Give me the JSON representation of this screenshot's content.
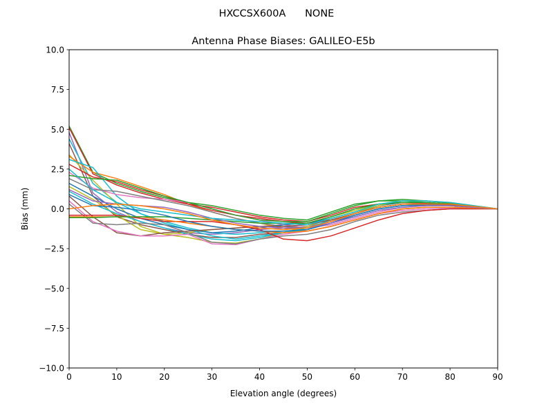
{
  "chart_data": {
    "type": "line",
    "suptitle": "HXCCSX600A      NONE",
    "title": "Antenna Phase Biases: GALILEO-E5b",
    "xlabel": "Elevation angle (degrees)",
    "ylabel": "Bias (mm)",
    "xlim": [
      0,
      90
    ],
    "ylim": [
      -10,
      10
    ],
    "xticks": [
      "0",
      "10",
      "20",
      "30",
      "40",
      "50",
      "60",
      "70",
      "80",
      "90"
    ],
    "yticks": [
      "10.0",
      "7.5",
      "5.0",
      "2.5",
      "0.0",
      "−2.5",
      "−5.0",
      "−7.5",
      "−10.0"
    ],
    "grid": false,
    "legend": "none",
    "colors": [
      "#1f77b4",
      "#ff7f0e",
      "#2ca02c",
      "#d62728",
      "#9467bd",
      "#8c564b",
      "#e377c2",
      "#7f7f7f",
      "#bcbd22",
      "#17becf"
    ],
    "x": [
      0,
      5,
      10,
      15,
      20,
      25,
      30,
      35,
      40,
      45,
      50,
      55,
      60,
      65,
      70,
      75,
      80,
      85,
      90
    ],
    "series": [
      {
        "color": "#2ca02c",
        "values": [
          5.2,
          2.3,
          1.6,
          1.1,
          0.7,
          0.4,
          0.2,
          -0.1,
          -0.4,
          -0.6,
          -0.7,
          -0.2,
          0.3,
          0.5,
          0.5,
          0.4,
          0.3,
          0.1,
          0
        ]
      },
      {
        "color": "#d62728",
        "values": [
          5.1,
          2.2,
          1.5,
          1.0,
          0.6,
          0.3,
          0.1,
          -0.2,
          -0.5,
          -0.7,
          -0.8,
          -0.4,
          0.1,
          0.3,
          0.4,
          0.35,
          0.25,
          0.1,
          0
        ]
      },
      {
        "color": "#9467bd",
        "values": [
          4.8,
          1.0,
          -0.2,
          -0.8,
          -1.2,
          -1.5,
          -1.6,
          -1.5,
          -1.3,
          -1.2,
          -1.1,
          -0.8,
          -0.4,
          0.0,
          0.2,
          0.25,
          0.2,
          0.1,
          0
        ]
      },
      {
        "color": "#17becf",
        "values": [
          4.4,
          1.6,
          0.4,
          -0.3,
          -0.8,
          -1.2,
          -1.5,
          -1.6,
          -1.5,
          -1.4,
          -1.3,
          -0.9,
          -0.5,
          -0.1,
          0.1,
          0.2,
          0.2,
          0.1,
          0
        ]
      },
      {
        "color": "#8c564b",
        "values": [
          4.1,
          0.8,
          -0.5,
          -1.0,
          -1.3,
          -1.6,
          -1.8,
          -1.8,
          -1.6,
          -1.5,
          -1.4,
          -1.1,
          -0.7,
          -0.3,
          0.0,
          0.1,
          0.1,
          0.05,
          0
        ]
      },
      {
        "color": "#bcbd22",
        "values": [
          3.4,
          1.8,
          0.3,
          -1.1,
          -1.6,
          -1.5,
          -1.3,
          -1.2,
          -1.1,
          -1.0,
          -0.9,
          -0.5,
          -0.1,
          0.3,
          0.4,
          0.4,
          0.3,
          0.15,
          0
        ]
      },
      {
        "color": "#ff7f0e",
        "values": [
          3.3,
          2.3,
          1.9,
          1.4,
          0.9,
          0.3,
          -0.2,
          -0.6,
          -0.9,
          -1.2,
          -1.4,
          -1.1,
          -0.7,
          -0.3,
          0.0,
          0.1,
          0.1,
          0.05,
          0
        ]
      },
      {
        "color": "#17becf",
        "values": [
          3.1,
          2.6,
          0.8,
          -0.3,
          -0.9,
          -1.3,
          -1.7,
          -1.9,
          -1.7,
          -1.5,
          -1.3,
          -0.9,
          -0.4,
          0.0,
          0.2,
          0.25,
          0.2,
          0.1,
          0
        ]
      },
      {
        "color": "#d62728",
        "values": [
          2.8,
          2.0,
          1.7,
          1.2,
          0.8,
          0.3,
          -0.1,
          -0.4,
          -0.6,
          -0.8,
          -0.9,
          -0.7,
          -0.3,
          0.1,
          0.3,
          0.3,
          0.25,
          0.1,
          0
        ]
      },
      {
        "color": "#e377c2",
        "values": [
          2.3,
          1.3,
          0.9,
          0.7,
          0.6,
          0.4,
          0.0,
          -0.4,
          -0.7,
          -1.0,
          -1.2,
          -1.0,
          -0.6,
          -0.2,
          0.1,
          0.2,
          0.2,
          0.1,
          0
        ]
      },
      {
        "color": "#2ca02c",
        "values": [
          2.1,
          1.9,
          1.8,
          1.3,
          0.8,
          0.4,
          0.0,
          -0.4,
          -0.7,
          -0.8,
          -0.8,
          -0.3,
          0.2,
          0.5,
          0.6,
          0.5,
          0.35,
          0.15,
          0
        ]
      },
      {
        "color": "#7f7f7f",
        "values": [
          1.9,
          1.2,
          1.1,
          0.8,
          0.5,
          0.2,
          -0.2,
          -0.6,
          -0.9,
          -1.1,
          -1.2,
          -0.8,
          -0.3,
          0.2,
          0.4,
          0.4,
          0.3,
          0.15,
          0
        ]
      },
      {
        "color": "#1f77b4",
        "values": [
          1.6,
          0.8,
          0.0,
          -0.6,
          -1.0,
          -1.3,
          -1.5,
          -1.4,
          -1.2,
          -1.0,
          -0.9,
          -0.6,
          -0.2,
          0.2,
          0.4,
          0.4,
          0.3,
          0.15,
          0
        ]
      },
      {
        "color": "#bcbd22",
        "values": [
          1.4,
          0.6,
          -0.4,
          -1.3,
          -1.6,
          -1.8,
          -2.1,
          -2.15,
          -1.9,
          -1.5,
          -1.1,
          -0.6,
          -0.2,
          0.2,
          0.5,
          0.5,
          0.4,
          0.2,
          0
        ]
      },
      {
        "color": "#17becf",
        "values": [
          1.1,
          0.3,
          -0.3,
          -0.8,
          -1.2,
          -1.6,
          -1.9,
          -2.0,
          -1.8,
          -1.5,
          -1.2,
          -0.7,
          -0.3,
          0.1,
          0.3,
          0.3,
          0.25,
          0.1,
          0
        ]
      },
      {
        "color": "#8c564b",
        "values": [
          0.8,
          -0.5,
          -1.5,
          -1.7,
          -1.5,
          -1.4,
          -1.3,
          -1.2,
          -1.1,
          -1.1,
          -1.0,
          -0.7,
          -0.3,
          0.1,
          0.3,
          0.3,
          0.25,
          0.1,
          0
        ]
      },
      {
        "color": "#e377c2",
        "values": [
          0.5,
          -0.8,
          -1.4,
          -1.7,
          -1.7,
          -1.6,
          -2.2,
          -2.25,
          -1.9,
          -1.6,
          -1.4,
          -1.1,
          -0.7,
          -0.3,
          -0.1,
          0.0,
          0.05,
          0.05,
          0
        ]
      },
      {
        "color": "#7f7f7f",
        "values": [
          0.3,
          -0.9,
          -1.0,
          -0.9,
          -1.0,
          -1.5,
          -2.1,
          -2.2,
          -1.9,
          -1.7,
          -1.6,
          -1.3,
          -0.8,
          -0.4,
          -0.2,
          -0.1,
          0.0,
          0.0,
          0
        ]
      },
      {
        "color": "#d62728",
        "values": [
          -0.4,
          -0.4,
          -0.4,
          -0.6,
          -0.8,
          -0.8,
          -0.8,
          -1.0,
          -1.3,
          -1.9,
          -2.0,
          -1.7,
          -1.2,
          -0.7,
          -0.3,
          -0.1,
          0.0,
          0.0,
          0
        ]
      },
      {
        "color": "#ff7f0e",
        "values": [
          -0.5,
          -0.5,
          -0.5,
          -0.5,
          -0.7,
          -0.9,
          -1.1,
          -1.3,
          -1.4,
          -1.5,
          -1.4,
          -1.1,
          -0.7,
          -0.3,
          0.0,
          0.1,
          0.1,
          0.05,
          0
        ]
      },
      {
        "color": "#2ca02c",
        "values": [
          -0.55,
          -0.55,
          -0.5,
          -0.5,
          -0.5,
          -0.6,
          -0.7,
          -0.8,
          -0.9,
          -0.9,
          -0.9,
          -0.5,
          0.0,
          0.3,
          0.4,
          0.4,
          0.3,
          0.15,
          0
        ]
      },
      {
        "color": "#1f77b4",
        "values": [
          0.9,
          0.2,
          0.1,
          -0.1,
          -0.4,
          -0.8,
          -1.1,
          -1.3,
          -1.4,
          -1.4,
          -1.3,
          -0.9,
          -0.4,
          0.0,
          0.2,
          0.25,
          0.2,
          0.1,
          0
        ]
      },
      {
        "color": "#9467bd",
        "values": [
          1.2,
          0.5,
          0.3,
          0.2,
          0.1,
          -0.2,
          -0.6,
          -0.9,
          -1.1,
          -1.2,
          -1.2,
          -0.9,
          -0.5,
          -0.1,
          0.1,
          0.2,
          0.2,
          0.1,
          0
        ]
      },
      {
        "color": "#17becf",
        "values": [
          2.5,
          1.2,
          0.4,
          0.0,
          -0.2,
          -0.4,
          -0.6,
          -0.7,
          -0.8,
          -0.9,
          -1.0,
          -0.6,
          -0.2,
          0.3,
          0.5,
          0.5,
          0.4,
          0.2,
          0
        ]
      },
      {
        "color": "#ff7f0e",
        "values": [
          0.0,
          0.2,
          0.3,
          0.2,
          0.0,
          -0.3,
          -0.7,
          -1.0,
          -1.2,
          -1.3,
          -1.2,
          -0.8,
          -0.3,
          0.1,
          0.3,
          0.3,
          0.3,
          0.15,
          0
        ]
      }
    ]
  }
}
